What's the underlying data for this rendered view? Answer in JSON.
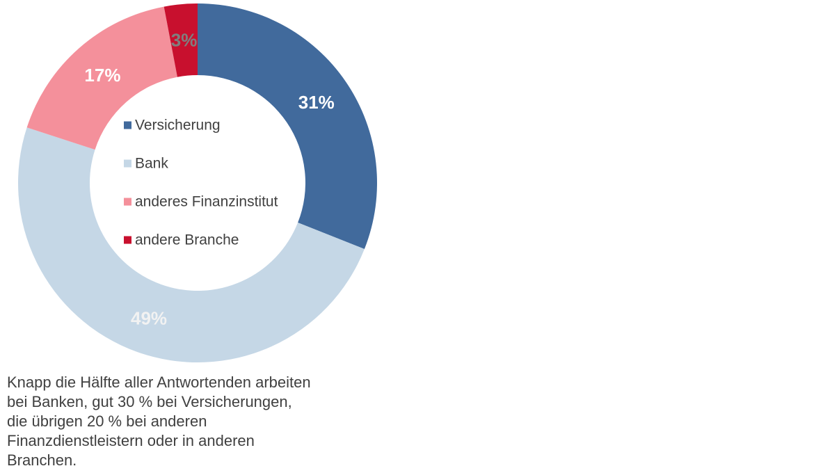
{
  "chart_data": {
    "type": "pie",
    "variant": "donut",
    "categories": [
      "Versicherung",
      "Bank",
      "anderes Finanzinstitut",
      "andere Branche"
    ],
    "values": [
      31,
      49,
      17,
      3
    ],
    "value_labels": [
      "31%",
      "49%",
      "17%",
      "3%"
    ],
    "colors": [
      "#416a9c",
      "#c5d7e6",
      "#f4909b",
      "#c8102e"
    ],
    "label_colors": [
      "#ffffff",
      "#f2f2f2",
      "#ffffff",
      "#7f7f7f"
    ],
    "legend": {
      "placement": "center",
      "entries": [
        "Versicherung",
        "Bank",
        "anderes Finanzinstitut",
        "andere Branche"
      ]
    },
    "start_angle_deg": 0,
    "direction": "clockwise"
  },
  "caption": "Knapp die Hälfte aller Antwortenden arbeiten bei Banken, gut 30 % bei Versicherungen, die übrigen 20 % bei anderen Finanzdienstleistern oder in anderen Branchen."
}
